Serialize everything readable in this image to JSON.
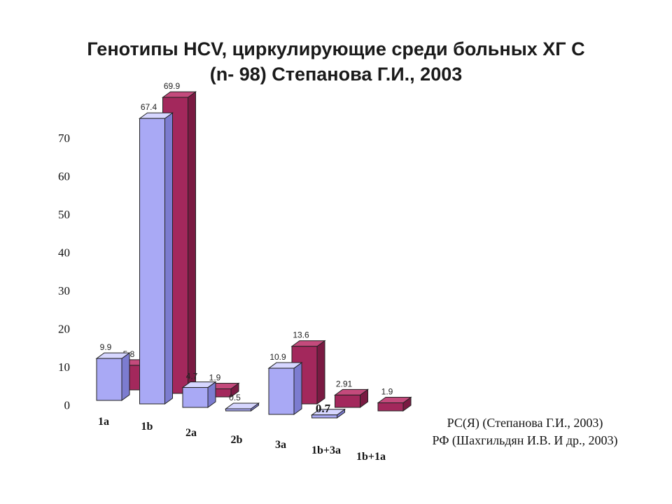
{
  "title": {
    "line1": "Генотипы HCV, циркулирующие среди больных ХГ С",
    "line2": "(n- 98) Степанова Г.И., 2003"
  },
  "legend": {
    "line1": "РС(Я) (Степанова Г.И., 2003)",
    "line2": "РФ (Шахгильдян И.В. И др., 2003)"
  },
  "colors": {
    "series1_front": "#a9a9f5",
    "series1_side": "#7c7cd0",
    "series1_top": "#d6d6ff",
    "series2_front": "#a3285c",
    "series2_side": "#7a1a42",
    "series2_top": "#c44a7c"
  },
  "chart_data": {
    "type": "bar",
    "categories": [
      "1a",
      "1b",
      "2a",
      "2b",
      "3a",
      "1b+3a",
      "1b+1a"
    ],
    "series": [
      {
        "name": "РС(Я) (Степанова Г.И., 2003)",
        "values": [
          9.9,
          67.4,
          4.7,
          0.5,
          10.9,
          0.7,
          null
        ],
        "labels": [
          "9.9",
          "67.4",
          "4.7",
          "0.5",
          "10.9",
          "0.7",
          ""
        ]
      },
      {
        "name": "РФ (Шахгильдян И.В. И др., 2003)",
        "values": [
          5.8,
          69.9,
          1.9,
          null,
          13.6,
          2.91,
          1.9
        ],
        "labels": [
          "5.8",
          "69.9",
          "1.9",
          "",
          "13.6",
          "2.91",
          "1.9"
        ]
      }
    ],
    "yticks": [
      "0",
      "10",
      "20",
      "30",
      "40",
      "50",
      "60",
      "70"
    ],
    "ylim": [
      0,
      70
    ],
    "grid": false
  }
}
